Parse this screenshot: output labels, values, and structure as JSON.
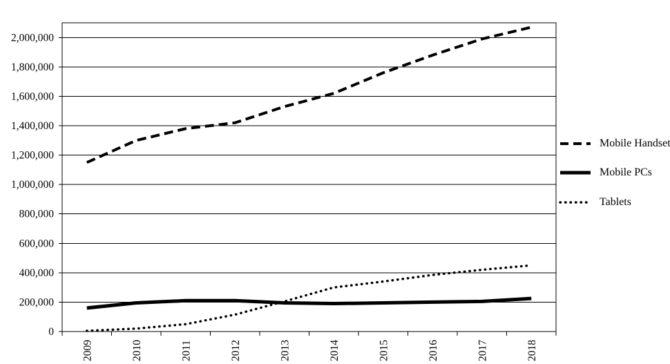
{
  "chart_data": {
    "type": "line",
    "title": "",
    "xlabel": "",
    "ylabel": "",
    "x_labels": [
      "2009",
      "2010",
      "2011",
      "2012",
      "2013",
      "2014",
      "2015",
      "2016",
      "2017",
      "2018"
    ],
    "ylim": [
      0,
      2100000
    ],
    "ytick_step": 200000,
    "ytick_labels": [
      "0",
      "200,000",
      "400,000",
      "600,000",
      "800,000",
      "1,000,000",
      "1,200,000",
      "1,400,000",
      "1,600,000",
      "1,800,000",
      "2,000,000"
    ],
    "grid": true,
    "legend_position": "right",
    "colors": {
      "foreground": "#000000",
      "background": "#ffffff"
    },
    "series": [
      {
        "name": "Mobile Handsets",
        "style": "dashed",
        "values": [
          1150000,
          1300000,
          1380000,
          1420000,
          1530000,
          1620000,
          1760000,
          1880000,
          1990000,
          2070000
        ]
      },
      {
        "name": "Mobile PCs",
        "style": "solid",
        "values": [
          160000,
          195000,
          210000,
          210000,
          195000,
          190000,
          195000,
          200000,
          205000,
          225000
        ]
      },
      {
        "name": "Tablets",
        "style": "dotted",
        "values": [
          5000,
          20000,
          50000,
          115000,
          205000,
          300000,
          340000,
          385000,
          420000,
          450000
        ]
      }
    ]
  }
}
